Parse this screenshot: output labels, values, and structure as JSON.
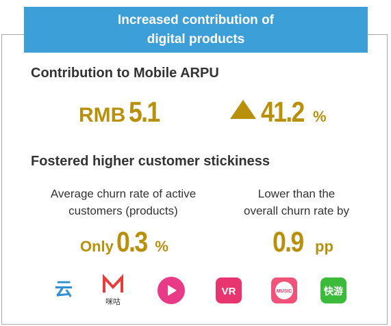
{
  "header": {
    "title_lines": [
      "Increased contribution of",
      "digital products"
    ]
  },
  "arpu": {
    "heading": "Contribution to Mobile ARPU",
    "currency": "RMB",
    "amount": 5.1,
    "growth": 41.2,
    "growth_unit": "%"
  },
  "stickiness": {
    "heading": "Fostered higher customer stickiness",
    "left": {
      "label_lines": [
        "Average churn rate of active",
        "customers (products)"
      ],
      "prefix": "Only",
      "value": 0.3,
      "unit": "%"
    },
    "right": {
      "label_lines": [
        "Lower than the",
        "overall churn rate by"
      ],
      "value": 0.9,
      "unit": "pp"
    }
  },
  "icons": {
    "labels": [
      "云",
      "咪咕",
      "VR",
      "MUSIC",
      "快游"
    ]
  }
}
